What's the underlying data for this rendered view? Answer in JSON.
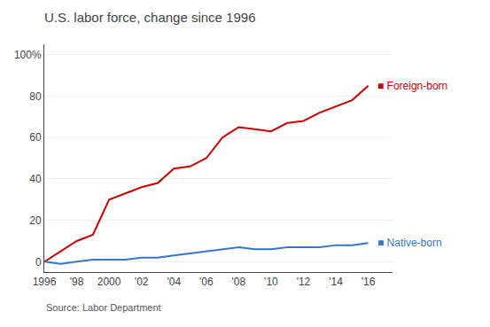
{
  "chart_data": {
    "type": "line",
    "title": "U.S. labor force, change since 1996",
    "source": "Source: Labor Department",
    "x": [
      1996,
      1997,
      1998,
      1999,
      2000,
      2001,
      2002,
      2003,
      2004,
      2005,
      2006,
      2007,
      2008,
      2009,
      2010,
      2011,
      2012,
      2013,
      2014,
      2015,
      2016
    ],
    "series": [
      {
        "name": "Foreign-born",
        "color": "#cc0000",
        "values": [
          0,
          5,
          10,
          13,
          30,
          33,
          36,
          38,
          45,
          46,
          50,
          60,
          65,
          64,
          63,
          67,
          68,
          72,
          75,
          78,
          85
        ]
      },
      {
        "name": "Native-born",
        "color": "#3377cc",
        "values": [
          0,
          -1,
          0,
          1,
          1,
          1,
          2,
          2,
          3,
          4,
          5,
          6,
          7,
          6,
          6,
          7,
          7,
          7,
          8,
          8,
          9
        ]
      }
    ],
    "annotations": [
      "■ Foreign-born",
      "■ Native-born"
    ],
    "xlim": [
      1996,
      2017.5
    ],
    "xticks": [
      1996,
      {
        "value": 1998,
        "label": "'98"
      },
      2000,
      {
        "value": 2002,
        "label": "'02"
      },
      {
        "value": 2004,
        "label": "'04"
      },
      {
        "value": 2006,
        "label": "'06"
      },
      {
        "value": 2008,
        "label": "'08"
      },
      {
        "value": 2010,
        "label": "'10"
      },
      {
        "value": 2012,
        "label": "'12"
      },
      {
        "value": 2014,
        "label": "'14"
      },
      {
        "value": 2016,
        "label": "'16"
      }
    ],
    "ylim": [
      -5,
      105
    ],
    "yticks": [
      0,
      20,
      40,
      60,
      80,
      {
        "value": 100,
        "label": "100%"
      }
    ],
    "grid": "y"
  }
}
